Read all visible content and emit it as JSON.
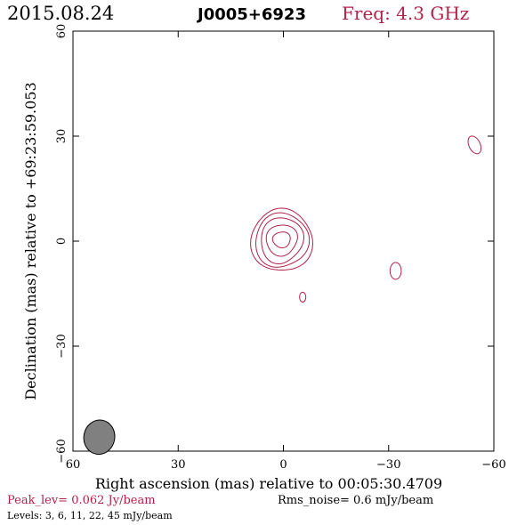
{
  "header": {
    "date": "2015.08.24",
    "source": "J0005+6923",
    "freq": "Freq: 4.3 GHz"
  },
  "footer": {
    "peak": "Peak_lev=  0.062 Jy/beam",
    "rms": "Rms_noise=   0.6 mJy/beam",
    "levels": "Levels:   3,    6,   11,   22,   45 mJy/beam"
  },
  "colors": {
    "contour": "#b0224a",
    "accent_text": "#b0224a",
    "beam_fill": "#808080",
    "axis": "#000000"
  },
  "chart_data": {
    "type": "contour",
    "xlabel": "Right ascension (mas) relative to 00:05:30.4709",
    "ylabel": "Declination (mas) relative to +69:23:59.053",
    "xlim": [
      60,
      -60
    ],
    "ylim": [
      -60,
      60
    ],
    "x_ticks": [
      60,
      30,
      0,
      -30,
      -60
    ],
    "y_ticks": [
      -60,
      -30,
      0,
      30,
      60
    ],
    "x_tick_labels": [
      "60",
      "30",
      "0",
      "−30",
      "−60"
    ],
    "y_tick_labels": [
      "−60",
      "−30",
      "0",
      "30",
      "60"
    ],
    "levels_mJy": [
      3,
      6,
      11,
      22,
      45
    ],
    "main_component": {
      "x": 0.5,
      "y": 0.5,
      "contours": [
        {
          "level": 3,
          "rx": 8.5,
          "ry": 8.8
        },
        {
          "level": 6,
          "rx": 7.4,
          "ry": 7.6
        },
        {
          "level": 11,
          "rx": 6.0,
          "ry": 6.3
        },
        {
          "level": 22,
          "rx": 4.5,
          "ry": 4.2
        },
        {
          "level": 45,
          "rx": 2.6,
          "ry": 2.1
        }
      ]
    },
    "isolated_contours": [
      {
        "x": -32,
        "y": -8.5,
        "rx": 1.6,
        "ry": 2.4,
        "angle": 0
      },
      {
        "x": -5.5,
        "y": -16,
        "rx": 0.9,
        "ry": 1.4,
        "angle": 0
      },
      {
        "x": -54.5,
        "y": 27.5,
        "rx": 1.6,
        "ry": 2.7,
        "angle": -25
      }
    ],
    "beam": {
      "x": 52.5,
      "y": -56,
      "major": 5.4,
      "minor": 4.4,
      "pa": 10
    }
  }
}
